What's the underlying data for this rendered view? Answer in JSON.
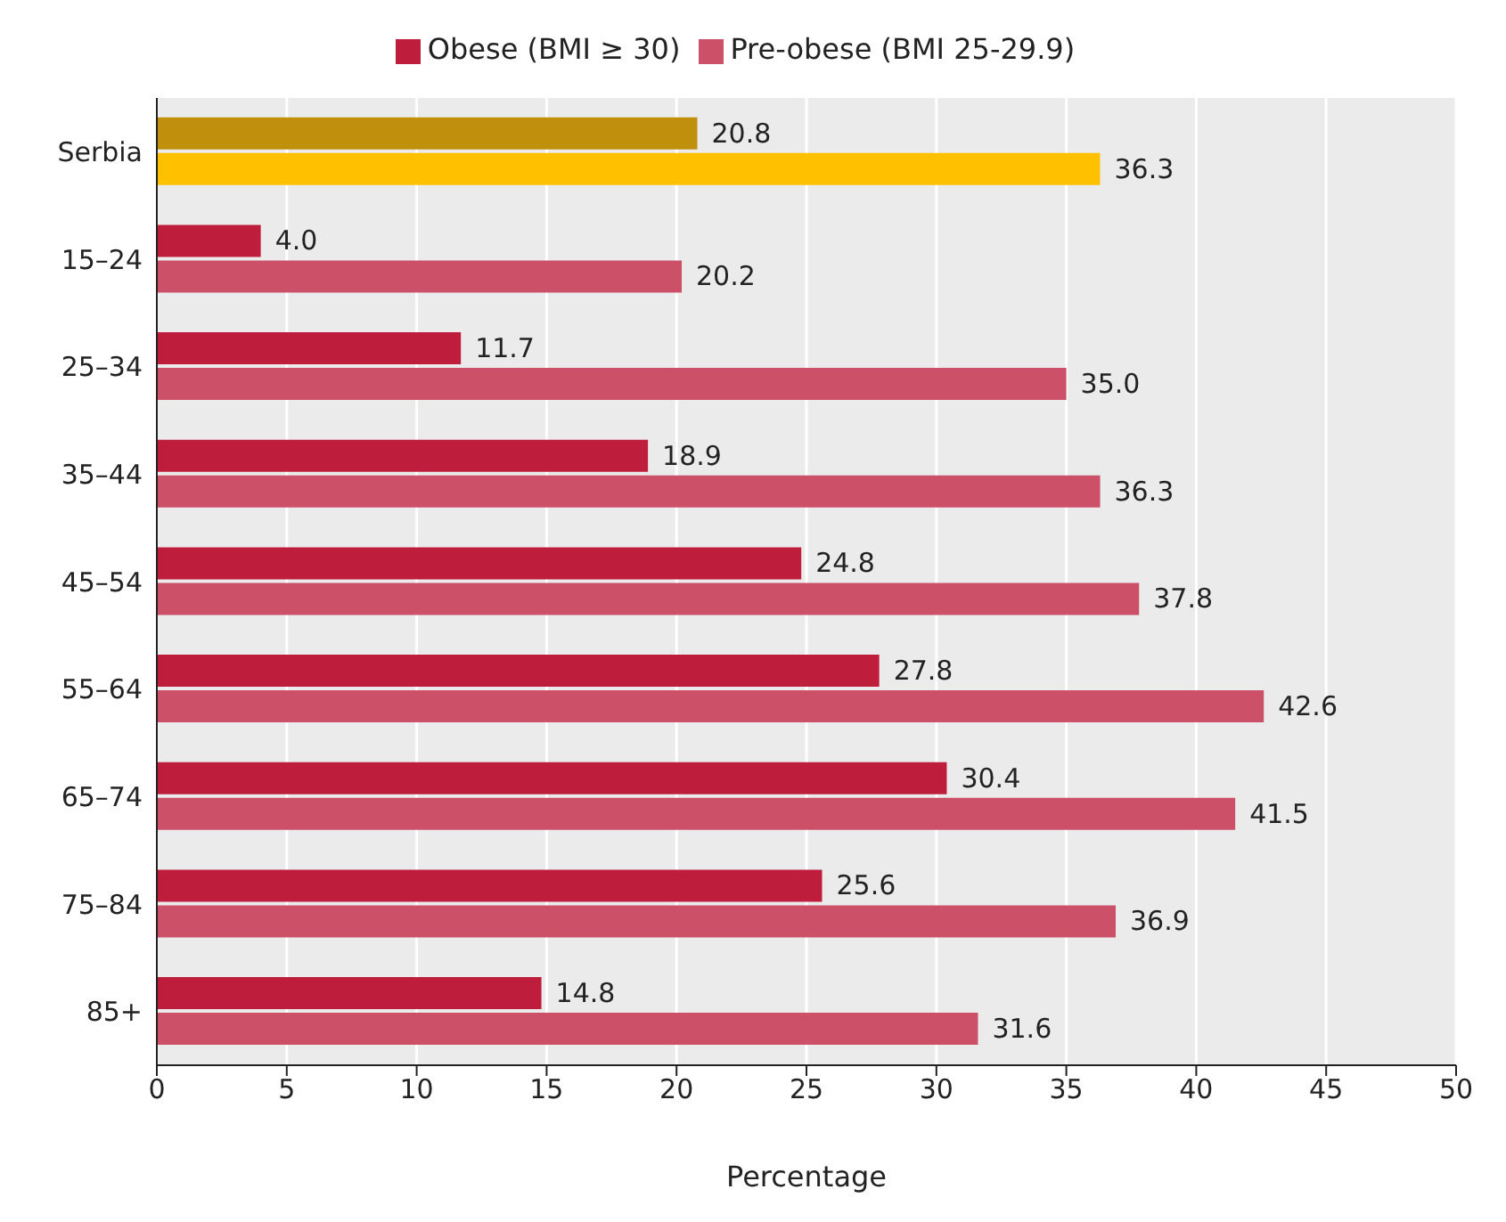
{
  "chart_data": {
    "type": "bar",
    "orientation": "horizontal",
    "xlabel": "Percentage",
    "categories": [
      "Serbia",
      "15–24",
      "25–34",
      "35–44",
      "45–54",
      "55–64",
      "65–74",
      "75–84",
      "85+"
    ],
    "series": [
      {
        "name": "Obese (BMI ≥ 30)",
        "color": "#be1e3c",
        "colors": [
          "#c0900c",
          "#be1e3c",
          "#be1e3c",
          "#be1e3c",
          "#be1e3c",
          "#be1e3c",
          "#be1e3c",
          "#be1e3c",
          "#be1e3c"
        ],
        "values": [
          20.8,
          4.0,
          11.7,
          18.9,
          24.8,
          27.8,
          30.4,
          25.6,
          14.8
        ],
        "value_labels": [
          "20.8",
          "4.0",
          "11.7",
          "18.9",
          "24.8",
          "27.8",
          "30.4",
          "25.6",
          "14.8"
        ]
      },
      {
        "name": "Pre-obese (BMI 25-29.9)",
        "color": "#cc5068",
        "colors": [
          "#ffc000",
          "#cc5068",
          "#cc5068",
          "#cc5068",
          "#cc5068",
          "#cc5068",
          "#cc5068",
          "#cc5068",
          "#cc5068"
        ],
        "values": [
          36.3,
          20.2,
          35.0,
          36.3,
          37.8,
          42.6,
          41.5,
          36.9,
          31.6
        ],
        "value_labels": [
          "36.3",
          "20.2",
          "35.0",
          "36.3",
          "37.8",
          "42.6",
          "41.5",
          "36.9",
          "31.6"
        ]
      }
    ],
    "xlim": [
      0,
      50
    ],
    "xticks": [
      0,
      5,
      10,
      15,
      20,
      25,
      30,
      35,
      40,
      45,
      50
    ],
    "grid": "x",
    "legend": "top"
  }
}
